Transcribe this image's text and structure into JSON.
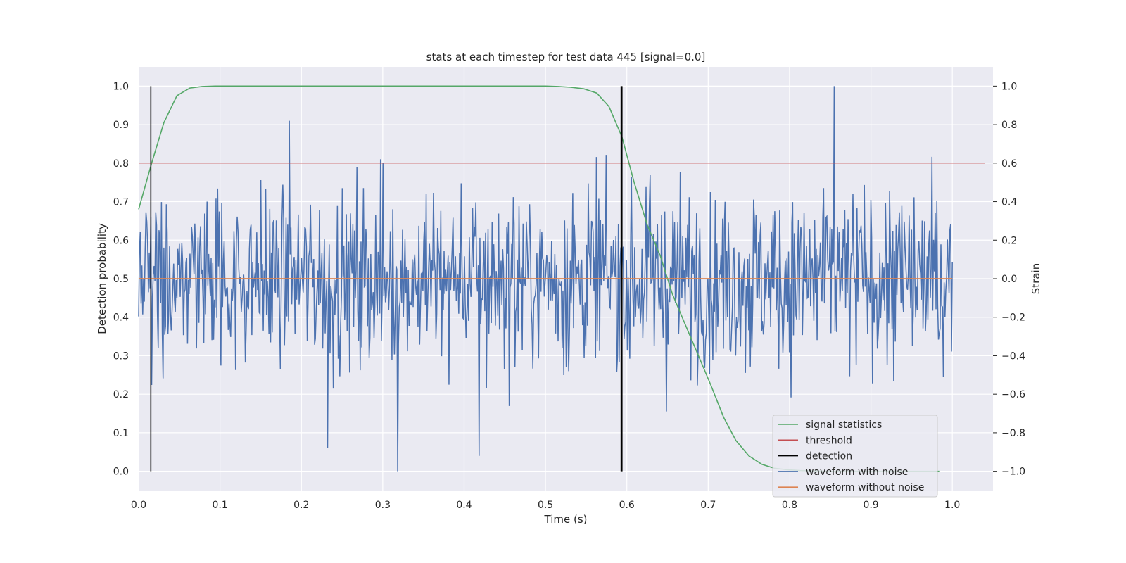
{
  "chart_data": {
    "type": "line",
    "title": "stats at each timestep for test data 445 [signal=0.0]",
    "xlabel": "Time (s)",
    "ylabel": "Detection probability",
    "y2label": "Strain",
    "xlim": [
      0.0,
      1.05
    ],
    "ylim": [
      -0.05,
      1.05
    ],
    "y2lim": [
      -1.1,
      1.1
    ],
    "xticks": [
      0.0,
      0.1,
      0.2,
      0.3,
      0.4,
      0.5,
      0.6,
      0.7,
      0.8,
      0.9,
      1.0
    ],
    "xtick_labels": [
      "0.0",
      "0.1",
      "0.2",
      "0.3",
      "0.4",
      "0.5",
      "0.6",
      "0.7",
      "0.8",
      "0.9",
      "1.0"
    ],
    "yticks": [
      0.0,
      0.1,
      0.2,
      0.3,
      0.4,
      0.5,
      0.6,
      0.7,
      0.8,
      0.9,
      1.0
    ],
    "ytick_labels": [
      "0.0",
      "0.1",
      "0.2",
      "0.3",
      "0.4",
      "0.5",
      "0.6",
      "0.7",
      "0.8",
      "0.9",
      "1.0"
    ],
    "y2ticks": [
      -1.0,
      -0.8,
      -0.6,
      -0.4,
      -0.2,
      0.0,
      0.2,
      0.4,
      0.6,
      0.8,
      1.0
    ],
    "y2tick_labels": [
      "−1.0",
      "−0.8",
      "−0.6",
      "−0.4",
      "−0.2",
      "0.0",
      "0.2",
      "0.4",
      "0.6",
      "0.8",
      "1.0"
    ],
    "grid": true,
    "legend_position": "lower-right",
    "series": [
      {
        "name": "signal statistics",
        "color": "#55a868",
        "axis": "left",
        "x": [
          0.0,
          0.016,
          0.031,
          0.047,
          0.063,
          0.078,
          0.094,
          0.109,
          0.125,
          0.2,
          0.3,
          0.4,
          0.5,
          0.516,
          0.531,
          0.547,
          0.563,
          0.578,
          0.594,
          0.609,
          0.625,
          0.641,
          0.656,
          0.672,
          0.688,
          0.703,
          0.719,
          0.734,
          0.75,
          0.766,
          0.781,
          0.797,
          0.813,
          0.828,
          0.844,
          0.859,
          0.875,
          0.891,
          0.906,
          0.922,
          0.938,
          0.953,
          0.969,
          0.984
        ],
        "y": [
          0.68,
          0.8,
          0.905,
          0.975,
          0.995,
          0.999,
          1.0,
          1.0,
          1.0,
          1.0,
          1.0,
          1.0,
          1.0,
          0.999,
          0.997,
          0.993,
          0.982,
          0.947,
          0.868,
          0.75,
          0.64,
          0.56,
          0.46,
          0.38,
          0.3,
          0.225,
          0.14,
          0.08,
          0.04,
          0.018,
          0.008,
          0.004,
          0.002,
          0.001,
          0.0,
          0.0,
          0.0,
          0.0,
          0.0,
          0.0,
          0.0,
          0.0,
          0.0,
          0.0
        ]
      },
      {
        "name": "threshold",
        "color": "#c44e52",
        "axis": "left",
        "x": [
          0.0,
          1.04
        ],
        "y": [
          0.8,
          0.8
        ]
      },
      {
        "name": "detection",
        "color": "#000000",
        "axis": "left",
        "vlines": [
          0.015,
          0.593,
          0.594
        ],
        "ymin": 0.0,
        "ymax": 1.0
      },
      {
        "name": "waveform with noise",
        "color": "#4c72b0",
        "axis": "right",
        "x_start": 0.0,
        "x_end": 1.0,
        "approx_count": 1000,
        "y_range": [
          -1.0,
          1.0
        ],
        "note_visible_peaks": [
          {
            "x": 0.318,
            "y": -1.0
          },
          {
            "x": 0.855,
            "y": 1.0
          },
          {
            "x": 0.185,
            "y": 0.82
          },
          {
            "x": 0.232,
            "y": -0.88
          },
          {
            "x": 0.418,
            "y": -0.92
          }
        ]
      },
      {
        "name": "waveform without noise",
        "color": "#dd8452",
        "axis": "right",
        "x": [
          0.0,
          1.0
        ],
        "y": [
          0.0,
          0.0
        ]
      }
    ]
  }
}
